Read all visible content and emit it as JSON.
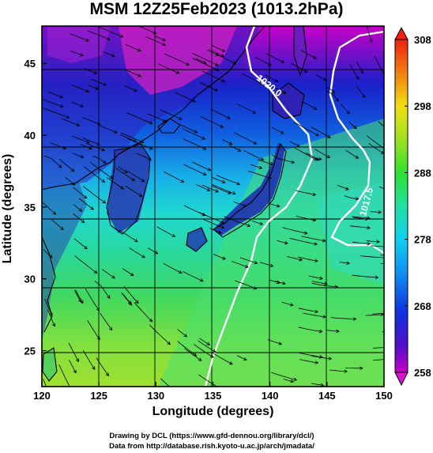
{
  "title": "MSM 12Z25Feb2023 (1013.2hPa)",
  "xlabel": "Longitude (degrees)",
  "ylabel": "Latitude  (degrees)",
  "credits": {
    "line1": "Drawing by DCL (https://www.gfd-dennou.org/library/dcl/)",
    "line2": "Data from http://database.rish.kyoto-u.ac.jp/arch/jmadata/"
  },
  "chart_data": {
    "type": "heatmap",
    "title": "MSM 12Z25Feb2023 (1013.2hPa)",
    "xlabel": "Longitude (degrees)",
    "ylabel": "Latitude  (degrees)",
    "xlim": [
      120,
      150
    ],
    "ylim": [
      22.5,
      47.6
    ],
    "xticks": [
      120,
      125,
      130,
      135,
      140,
      145,
      150
    ],
    "yticks": [
      25,
      30,
      35,
      40,
      45
    ],
    "grid": true,
    "colorbar": {
      "ticks": [
        258,
        268,
        278,
        288,
        298,
        308
      ],
      "range": [
        258,
        308
      ]
    },
    "contours": [
      {
        "label": "1020.0",
        "color": "#ffffff"
      },
      {
        "label": "1017.5",
        "color": "#ffffff"
      }
    ],
    "colors": {
      "cold": "#e000e0",
      "mid_cold": "#1040e0",
      "mid": "#18d8e0",
      "mid_warm": "#50e050",
      "warm": "#f0e010",
      "hot": "#f03010",
      "land": "#2a1a40"
    }
  }
}
